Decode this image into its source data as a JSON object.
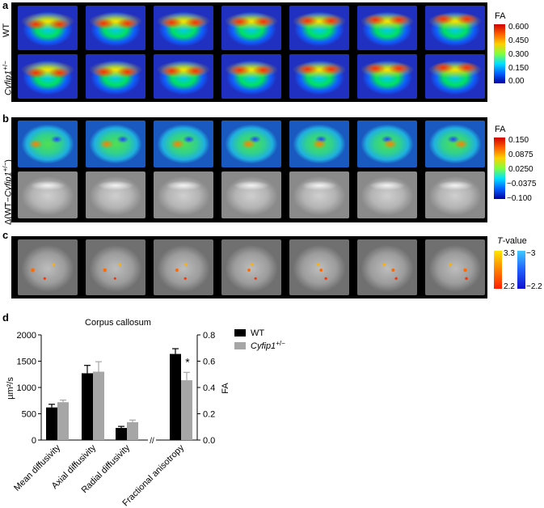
{
  "panels": {
    "a": {
      "letter": "a",
      "rows": [
        {
          "label": "WT"
        },
        {
          "label_main": "Cyfip1",
          "label_sup": "+/−"
        }
      ],
      "colorbar": {
        "title": "FA",
        "ticks": [
          "0.600",
          "0.450",
          "0.300",
          "0.150",
          "0.00"
        ]
      }
    },
    "b": {
      "letter": "b",
      "row_label": {
        "pre": "Δ(WT−",
        "italic": "Cyfip1",
        "sup": "+/−",
        "post": ")"
      },
      "colorbar": {
        "title": "FA",
        "ticks": [
          "0.150",
          "0.0875",
          "0.0250",
          "−0.0375",
          "−0.100"
        ]
      }
    },
    "c": {
      "letter": "c",
      "colorbar": {
        "title_italic": "T",
        "title_rest": "-value",
        "warm_ticks": [
          "3.3",
          "2.2"
        ],
        "cool_ticks": [
          "−3",
          "−2.2"
        ]
      }
    },
    "d": {
      "letter": "d",
      "chart_data": {
        "type": "bar",
        "title": "Corpus callosum",
        "categories": [
          "Mean diffusivity",
          "Axial diffusivity",
          "Radial diffusivity",
          "Fractional anisotropy"
        ],
        "axis_break_label": "//",
        "left_axis": {
          "label": "µm²/s",
          "ylim": [
            0,
            2000
          ],
          "ticks": [
            0,
            500,
            1000,
            1500,
            2000
          ]
        },
        "right_axis": {
          "label": "FA",
          "ylim": [
            0,
            0.8
          ],
          "ticks": [
            "0.0",
            "0.2",
            "0.4",
            "0.6",
            "0.8"
          ]
        },
        "series": [
          {
            "name": "WT",
            "color": "#000000",
            "values": [
              620,
              1270,
              230,
              0.655
            ],
            "errors": [
              60,
              150,
              30,
              0.04
            ]
          },
          {
            "name_main": "Cyfip1",
            "name_sup": "+/−",
            "color": "#a6a6a6",
            "values": [
              720,
              1300,
              340,
              0.455
            ],
            "errors": [
              40,
              190,
              40,
              0.06
            ]
          }
        ],
        "axis_per_category": [
          "left",
          "left",
          "left",
          "right"
        ],
        "significance": [
          {
            "category": "Fractional anisotropy",
            "label": "*"
          }
        ]
      }
    }
  },
  "colors": {
    "jet_top": "#ff0000",
    "jet_bottom": "#0000b0",
    "hot_top": "#ffe600",
    "hot_bottom": "#ff2000",
    "cool_top": "#40c8ff",
    "cool_bottom": "#1010d0"
  }
}
